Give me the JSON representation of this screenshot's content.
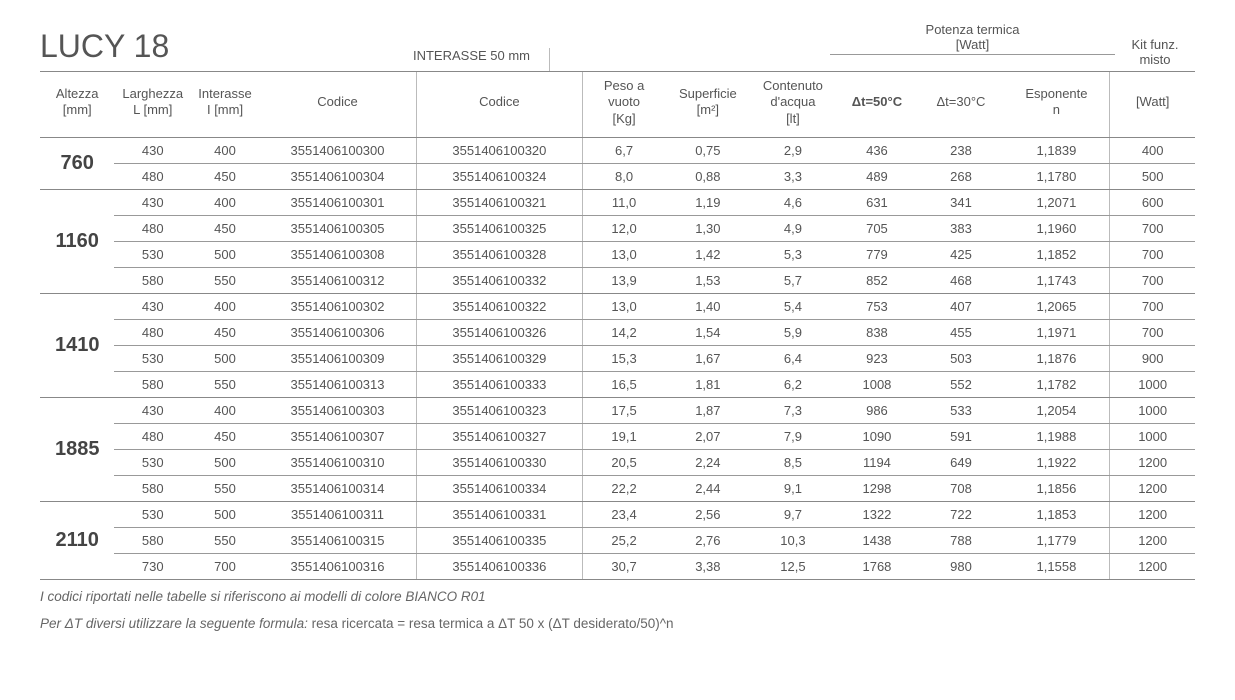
{
  "title": "LUCY 18",
  "header": {
    "interasse_top": "INTERASSE 50 mm",
    "potenza_top": "Potenza termica\n[Watt]",
    "kit_top": "Kit funz.\nmisto",
    "altezza": "Altezza\n[mm]",
    "larghezza": "Larghezza\nL [mm]",
    "interasse": "Interasse\nI [mm]",
    "codice": "Codice",
    "codice2": "Codice",
    "peso": "Peso a\nvuoto\n[Kg]",
    "superficie": "Superficie\n[m²]",
    "contenuto": "Contenuto\nd'acqua\n[lt]",
    "dt50": "Δt=50°C",
    "dt30": "Δt=30°C",
    "esponente": "Esponente\nn",
    "kit": "[Watt]"
  },
  "groups": [
    {
      "altezza": "760",
      "rows": [
        {
          "larg": "430",
          "int": "400",
          "cod": "3551406100300",
          "cod2": "3551406100320",
          "peso": "6,7",
          "sup": "0,75",
          "cont": "2,9",
          "dt50": "436",
          "dt30": "238",
          "esp": "1,1839",
          "kit": "400"
        },
        {
          "larg": "480",
          "int": "450",
          "cod": "3551406100304",
          "cod2": "3551406100324",
          "peso": "8,0",
          "sup": "0,88",
          "cont": "3,3",
          "dt50": "489",
          "dt30": "268",
          "esp": "1,1780",
          "kit": "500"
        }
      ]
    },
    {
      "altezza": "1160",
      "rows": [
        {
          "larg": "430",
          "int": "400",
          "cod": "3551406100301",
          "cod2": "3551406100321",
          "peso": "11,0",
          "sup": "1,19",
          "cont": "4,6",
          "dt50": "631",
          "dt30": "341",
          "esp": "1,2071",
          "kit": "600"
        },
        {
          "larg": "480",
          "int": "450",
          "cod": "3551406100305",
          "cod2": "3551406100325",
          "peso": "12,0",
          "sup": "1,30",
          "cont": "4,9",
          "dt50": "705",
          "dt30": "383",
          "esp": "1,1960",
          "kit": "700"
        },
        {
          "larg": "530",
          "int": "500",
          "cod": "3551406100308",
          "cod2": "3551406100328",
          "peso": "13,0",
          "sup": "1,42",
          "cont": "5,3",
          "dt50": "779",
          "dt30": "425",
          "esp": "1,1852",
          "kit": "700"
        },
        {
          "larg": "580",
          "int": "550",
          "cod": "3551406100312",
          "cod2": "3551406100332",
          "peso": "13,9",
          "sup": "1,53",
          "cont": "5,7",
          "dt50": "852",
          "dt30": "468",
          "esp": "1,1743",
          "kit": "700"
        }
      ]
    },
    {
      "altezza": "1410",
      "rows": [
        {
          "larg": "430",
          "int": "400",
          "cod": "3551406100302",
          "cod2": "3551406100322",
          "peso": "13,0",
          "sup": "1,40",
          "cont": "5,4",
          "dt50": "753",
          "dt30": "407",
          "esp": "1,2065",
          "kit": "700"
        },
        {
          "larg": "480",
          "int": "450",
          "cod": "3551406100306",
          "cod2": "3551406100326",
          "peso": "14,2",
          "sup": "1,54",
          "cont": "5,9",
          "dt50": "838",
          "dt30": "455",
          "esp": "1,1971",
          "kit": "700"
        },
        {
          "larg": "530",
          "int": "500",
          "cod": "3551406100309",
          "cod2": "3551406100329",
          "peso": "15,3",
          "sup": "1,67",
          "cont": "6,4",
          "dt50": "923",
          "dt30": "503",
          "esp": "1,1876",
          "kit": "900"
        },
        {
          "larg": "580",
          "int": "550",
          "cod": "3551406100313",
          "cod2": "3551406100333",
          "peso": "16,5",
          "sup": "1,81",
          "cont": "6,2",
          "dt50": "1008",
          "dt30": "552",
          "esp": "1,1782",
          "kit": "1000"
        }
      ]
    },
    {
      "altezza": "1885",
      "rows": [
        {
          "larg": "430",
          "int": "400",
          "cod": "3551406100303",
          "cod2": "3551406100323",
          "peso": "17,5",
          "sup": "1,87",
          "cont": "7,3",
          "dt50": "986",
          "dt30": "533",
          "esp": "1,2054",
          "kit": "1000"
        },
        {
          "larg": "480",
          "int": "450",
          "cod": "3551406100307",
          "cod2": "3551406100327",
          "peso": "19,1",
          "sup": "2,07",
          "cont": "7,9",
          "dt50": "1090",
          "dt30": "591",
          "esp": "1,1988",
          "kit": "1000"
        },
        {
          "larg": "530",
          "int": "500",
          "cod": "3551406100310",
          "cod2": "3551406100330",
          "peso": "20,5",
          "sup": "2,24",
          "cont": "8,5",
          "dt50": "1194",
          "dt30": "649",
          "esp": "1,1922",
          "kit": "1200"
        },
        {
          "larg": "580",
          "int": "550",
          "cod": "3551406100314",
          "cod2": "3551406100334",
          "peso": "22,2",
          "sup": "2,44",
          "cont": "9,1",
          "dt50": "1298",
          "dt30": "708",
          "esp": "1,1856",
          "kit": "1200"
        }
      ]
    },
    {
      "altezza": "2110",
      "rows": [
        {
          "larg": "530",
          "int": "500",
          "cod": "3551406100311",
          "cod2": "3551406100331",
          "peso": "23,4",
          "sup": "2,56",
          "cont": "9,7",
          "dt50": "1322",
          "dt30": "722",
          "esp": "1,1853",
          "kit": "1200"
        },
        {
          "larg": "580",
          "int": "550",
          "cod": "3551406100315",
          "cod2": "3551406100335",
          "peso": "25,2",
          "sup": "2,76",
          "cont": "10,3",
          "dt50": "1438",
          "dt30": "788",
          "esp": "1,1779",
          "kit": "1200"
        },
        {
          "larg": "730",
          "int": "700",
          "cod": "3551406100316",
          "cod2": "3551406100336",
          "peso": "30,7",
          "sup": "3,38",
          "cont": "12,5",
          "dt50": "1768",
          "dt30": "980",
          "esp": "1,1558",
          "kit": "1200"
        }
      ]
    }
  ],
  "footnote1": "I codici riportati nelle tabelle si riferiscono ai modelli di colore BIANCO R01",
  "footnote2a": "Per ΔT diversi utilizzare la seguente formula: ",
  "footnote2b": "resa ricercata = resa termica a ΔT 50 x (ΔT desiderato/50)^n"
}
